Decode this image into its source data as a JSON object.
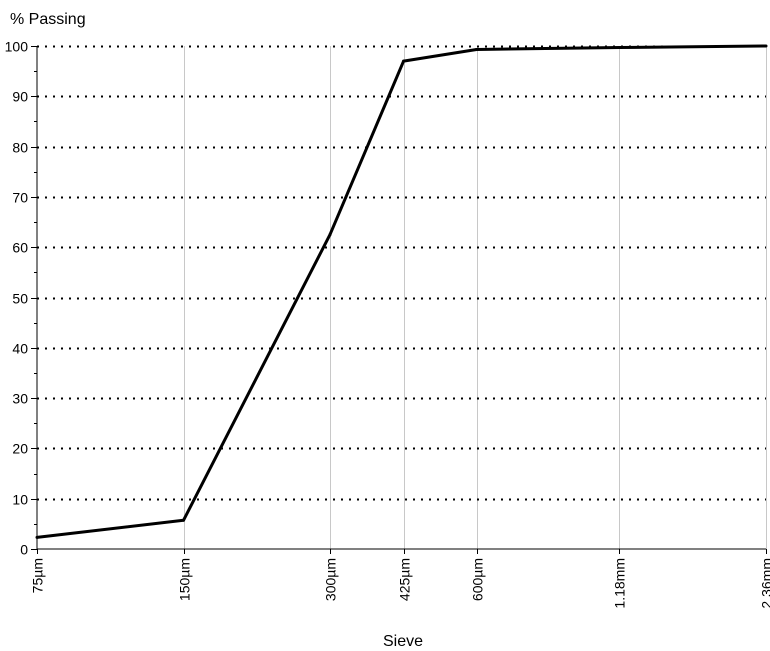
{
  "chart_data": {
    "type": "line",
    "ylabel": "% Passing",
    "xlabel": "Sieve",
    "categories": [
      "75µm",
      "150µm",
      "300µm",
      "425µm",
      "600µm",
      "1.18mm",
      "2.36mm"
    ],
    "x_scale": "log",
    "x_values_um": [
      75,
      150,
      300,
      425,
      600,
      1180,
      2360
    ],
    "ylim": [
      0,
      100
    ],
    "y_ticks": [
      0,
      10,
      20,
      30,
      40,
      50,
      60,
      70,
      80,
      90,
      100
    ],
    "grid": {
      "horizontal": "dotted",
      "vertical": "solid-light"
    },
    "series": [
      {
        "values": [
          2.3,
          5.7,
          62.5,
          97.0,
          99.3,
          99.7,
          100.0
        ],
        "color": "#000000"
      }
    ]
  }
}
